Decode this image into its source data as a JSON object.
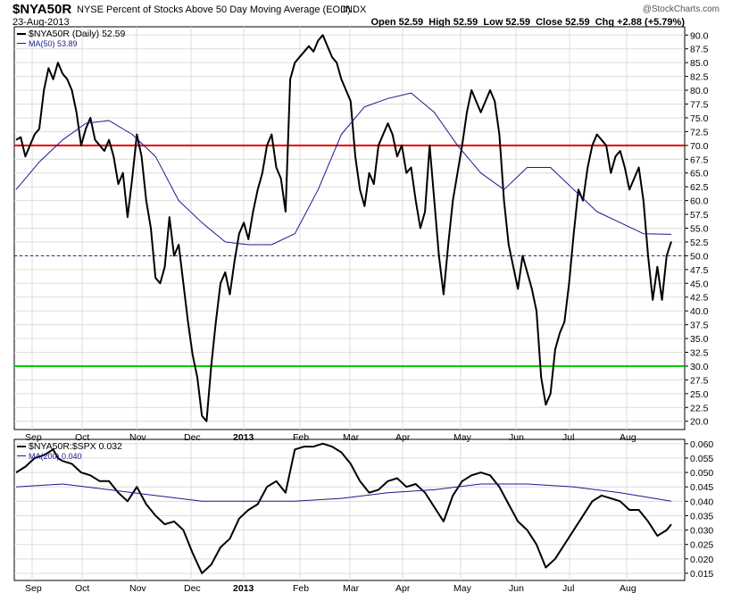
{
  "header": {
    "symbol": "$NYA50R",
    "description": "NYSE Percent of Stocks Above 50 Day Moving Average (EOD)",
    "exchange": "INDX",
    "date": "23-Aug-2013",
    "quote": "Open 52.59  High 52.59  Low 52.59  Close 52.59  Chg +2.88 (+5.79%)",
    "copyright": "@StockCharts.com"
  },
  "colors": {
    "price": "#000000",
    "ma": "#1a1a8c",
    "overbought": "#e60000",
    "oversold": "#00cc00",
    "midline": "#1a1a8c",
    "grid": "#dcdcdc"
  },
  "chart_data": [
    {
      "type": "line",
      "ylim": [
        18.5,
        91.5
      ],
      "y_ticks": [
        "90.0",
        "87.5",
        "85.0",
        "82.5",
        "80.0",
        "77.5",
        "75.0",
        "72.5",
        "70.0",
        "67.5",
        "65.0",
        "62.5",
        "60.0",
        "57.5",
        "55.0",
        "52.5",
        "50.0",
        "47.5",
        "45.0",
        "42.5",
        "40.0",
        "37.5",
        "35.0",
        "32.5",
        "30.0",
        "27.5",
        "25.0",
        "22.5",
        "20.0"
      ],
      "x_labels": [
        "Sep",
        "Oct",
        "Nov",
        "Dec",
        "2013",
        "Feb",
        "Mar",
        "Apr",
        "May",
        "Jun",
        "Jul",
        "Aug"
      ],
      "legend": [
        "$NYA50R (Daily) 52.59",
        "MA(50) 53.89"
      ],
      "reference_lines": [
        70,
        50,
        30
      ],
      "series": [
        {
          "name": "$NYA50R (Daily) 52.59",
          "points": [
            [
              0,
              71
            ],
            [
              1,
              71.5
            ],
            [
              2,
              68
            ],
            [
              3,
              70
            ],
            [
              4,
              72
            ],
            [
              5,
              73
            ],
            [
              6,
              80
            ],
            [
              7,
              84
            ],
            [
              8,
              82
            ],
            [
              9,
              85
            ],
            [
              10,
              83
            ],
            [
              11,
              82
            ],
            [
              12,
              80
            ],
            [
              13,
              76
            ],
            [
              14,
              70
            ],
            [
              15,
              73
            ],
            [
              16,
              75
            ],
            [
              17,
              71
            ],
            [
              18,
              70
            ],
            [
              19,
              69
            ],
            [
              20,
              71
            ],
            [
              21,
              68
            ],
            [
              22,
              63
            ],
            [
              23,
              65
            ],
            [
              24,
              57
            ],
            [
              25,
              64
            ],
            [
              26,
              72
            ],
            [
              27,
              68
            ],
            [
              28,
              60
            ],
            [
              29,
              55
            ],
            [
              30,
              46
            ],
            [
              31,
              45
            ],
            [
              32,
              48
            ],
            [
              33,
              57
            ],
            [
              34,
              50
            ],
            [
              35,
              52
            ],
            [
              36,
              45
            ],
            [
              37,
              38
            ],
            [
              38,
              32
            ],
            [
              39,
              28
            ],
            [
              40,
              21
            ],
            [
              41,
              20
            ],
            [
              42,
              30
            ],
            [
              43,
              38
            ],
            [
              44,
              45
            ],
            [
              45,
              47
            ],
            [
              46,
              43
            ],
            [
              47,
              49
            ],
            [
              48,
              54
            ],
            [
              49,
              56
            ],
            [
              50,
              53
            ],
            [
              51,
              58
            ],
            [
              52,
              62
            ],
            [
              53,
              65
            ],
            [
              54,
              70
            ],
            [
              55,
              72
            ],
            [
              56,
              66
            ],
            [
              57,
              64
            ],
            [
              58,
              58
            ],
            [
              59,
              82
            ],
            [
              60,
              85
            ],
            [
              61,
              86
            ],
            [
              62,
              87
            ],
            [
              63,
              88
            ],
            [
              64,
              87
            ],
            [
              65,
              89
            ],
            [
              66,
              90
            ],
            [
              67,
              88
            ],
            [
              68,
              86
            ],
            [
              69,
              85
            ],
            [
              70,
              82
            ],
            [
              71,
              80
            ],
            [
              72,
              78
            ],
            [
              73,
              68
            ],
            [
              74,
              62
            ],
            [
              75,
              59
            ],
            [
              76,
              65
            ],
            [
              77,
              63
            ],
            [
              78,
              70
            ],
            [
              79,
              72
            ],
            [
              80,
              74
            ],
            [
              81,
              72
            ],
            [
              82,
              68
            ],
            [
              83,
              70
            ],
            [
              84,
              65
            ],
            [
              85,
              66
            ],
            [
              86,
              60
            ],
            [
              87,
              55
            ],
            [
              88,
              58
            ],
            [
              89,
              70
            ],
            [
              90,
              60
            ],
            [
              91,
              50
            ],
            [
              92,
              43
            ],
            [
              93,
              52
            ],
            [
              94,
              60
            ],
            [
              95,
              65
            ],
            [
              96,
              70
            ],
            [
              97,
              76
            ],
            [
              98,
              80
            ],
            [
              99,
              78
            ],
            [
              100,
              76
            ],
            [
              101,
              78
            ],
            [
              102,
              80
            ],
            [
              103,
              78
            ],
            [
              104,
              72
            ],
            [
              105,
              60
            ],
            [
              106,
              52
            ],
            [
              107,
              48
            ],
            [
              108,
              44
            ],
            [
              109,
              50
            ],
            [
              110,
              47
            ],
            [
              111,
              44
            ],
            [
              112,
              40
            ],
            [
              113,
              28
            ],
            [
              114,
              23
            ],
            [
              115,
              25
            ],
            [
              116,
              33
            ],
            [
              117,
              36
            ],
            [
              118,
              38
            ],
            [
              119,
              45
            ],
            [
              120,
              54
            ],
            [
              121,
              62
            ],
            [
              122,
              60
            ],
            [
              123,
              66
            ],
            [
              124,
              70
            ],
            [
              125,
              72
            ],
            [
              126,
              71
            ],
            [
              127,
              70
            ],
            [
              128,
              65
            ],
            [
              129,
              68
            ],
            [
              130,
              69
            ],
            [
              131,
              66
            ],
            [
              132,
              62
            ],
            [
              133,
              64
            ],
            [
              134,
              66
            ],
            [
              135,
              60
            ],
            [
              136,
              50
            ],
            [
              137,
              42
            ],
            [
              138,
              48
            ],
            [
              139,
              42
            ],
            [
              140,
              50
            ],
            [
              141,
              52.59
            ]
          ]
        },
        {
          "name": "MA(50) 53.89",
          "points": [
            [
              0,
              62
            ],
            [
              5,
              67
            ],
            [
              10,
              71
            ],
            [
              15,
              74
            ],
            [
              20,
              74.5
            ],
            [
              25,
              72
            ],
            [
              30,
              68
            ],
            [
              35,
              60
            ],
            [
              40,
              56
            ],
            [
              45,
              52.5
            ],
            [
              50,
              52
            ],
            [
              55,
              52
            ],
            [
              60,
              54
            ],
            [
              65,
              62
            ],
            [
              70,
              72
            ],
            [
              75,
              77
            ],
            [
              80,
              78.5
            ],
            [
              85,
              79.5
            ],
            [
              90,
              76
            ],
            [
              95,
              70
            ],
            [
              100,
              65
            ],
            [
              105,
              62
            ],
            [
              110,
              66
            ],
            [
              115,
              66
            ],
            [
              120,
              62
            ],
            [
              125,
              58
            ],
            [
              130,
              56
            ],
            [
              135,
              54
            ],
            [
              141,
              53.89
            ]
          ]
        }
      ]
    },
    {
      "type": "line",
      "ylim": [
        0.0125,
        0.0615
      ],
      "y_ticks": [
        "0.060",
        "0.055",
        "0.050",
        "0.045",
        "0.040",
        "0.035",
        "0.030",
        "0.025",
        "0.020",
        "0.015"
      ],
      "x_labels": [
        "Sep",
        "Oct",
        "Nov",
        "Dec",
        "2013",
        "Feb",
        "Mar",
        "Apr",
        "May",
        "Jun",
        "Jul",
        "Aug"
      ],
      "legend": [
        "$NYA50R:$SPX 0.032",
        "MA(200) 0.040"
      ],
      "series": [
        {
          "name": "$NYA50R:$SPX 0.032",
          "points": [
            [
              0,
              0.05
            ],
            [
              2,
              0.052
            ],
            [
              4,
              0.055
            ],
            [
              6,
              0.056
            ],
            [
              8,
              0.058
            ],
            [
              9,
              0.055
            ],
            [
              10,
              0.054
            ],
            [
              12,
              0.053
            ],
            [
              14,
              0.05
            ],
            [
              16,
              0.049
            ],
            [
              18,
              0.047
            ],
            [
              20,
              0.047
            ],
            [
              22,
              0.043
            ],
            [
              24,
              0.04
            ],
            [
              26,
              0.045
            ],
            [
              28,
              0.039
            ],
            [
              30,
              0.035
            ],
            [
              32,
              0.032
            ],
            [
              34,
              0.033
            ],
            [
              36,
              0.03
            ],
            [
              38,
              0.022
            ],
            [
              40,
              0.015
            ],
            [
              42,
              0.018
            ],
            [
              44,
              0.024
            ],
            [
              46,
              0.027
            ],
            [
              48,
              0.034
            ],
            [
              50,
              0.037
            ],
            [
              52,
              0.039
            ],
            [
              54,
              0.045
            ],
            [
              56,
              0.047
            ],
            [
              58,
              0.043
            ],
            [
              60,
              0.058
            ],
            [
              62,
              0.059
            ],
            [
              64,
              0.059
            ],
            [
              66,
              0.06
            ],
            [
              68,
              0.059
            ],
            [
              70,
              0.057
            ],
            [
              72,
              0.053
            ],
            [
              74,
              0.047
            ],
            [
              76,
              0.043
            ],
            [
              78,
              0.044
            ],
            [
              80,
              0.047
            ],
            [
              82,
              0.048
            ],
            [
              84,
              0.045
            ],
            [
              86,
              0.046
            ],
            [
              88,
              0.043
            ],
            [
              90,
              0.038
            ],
            [
              92,
              0.033
            ],
            [
              94,
              0.042
            ],
            [
              96,
              0.047
            ],
            [
              98,
              0.049
            ],
            [
              100,
              0.05
            ],
            [
              102,
              0.049
            ],
            [
              104,
              0.045
            ],
            [
              106,
              0.039
            ],
            [
              108,
              0.033
            ],
            [
              110,
              0.03
            ],
            [
              112,
              0.025
            ],
            [
              114,
              0.017
            ],
            [
              116,
              0.02
            ],
            [
              118,
              0.025
            ],
            [
              120,
              0.03
            ],
            [
              122,
              0.035
            ],
            [
              124,
              0.04
            ],
            [
              126,
              0.042
            ],
            [
              128,
              0.041
            ],
            [
              130,
              0.04
            ],
            [
              132,
              0.037
            ],
            [
              134,
              0.037
            ],
            [
              136,
              0.033
            ],
            [
              138,
              0.028
            ],
            [
              140,
              0.03
            ],
            [
              141,
              0.032
            ]
          ]
        },
        {
          "name": "MA(200) 0.040",
          "points": [
            [
              0,
              0.045
            ],
            [
              10,
              0.046
            ],
            [
              20,
              0.044
            ],
            [
              30,
              0.042
            ],
            [
              40,
              0.04
            ],
            [
              50,
              0.04
            ],
            [
              60,
              0.04
            ],
            [
              70,
              0.041
            ],
            [
              80,
              0.043
            ],
            [
              90,
              0.044
            ],
            [
              100,
              0.046
            ],
            [
              110,
              0.046
            ],
            [
              120,
              0.045
            ],
            [
              130,
              0.043
            ],
            [
              141,
              0.04
            ]
          ]
        }
      ]
    }
  ]
}
